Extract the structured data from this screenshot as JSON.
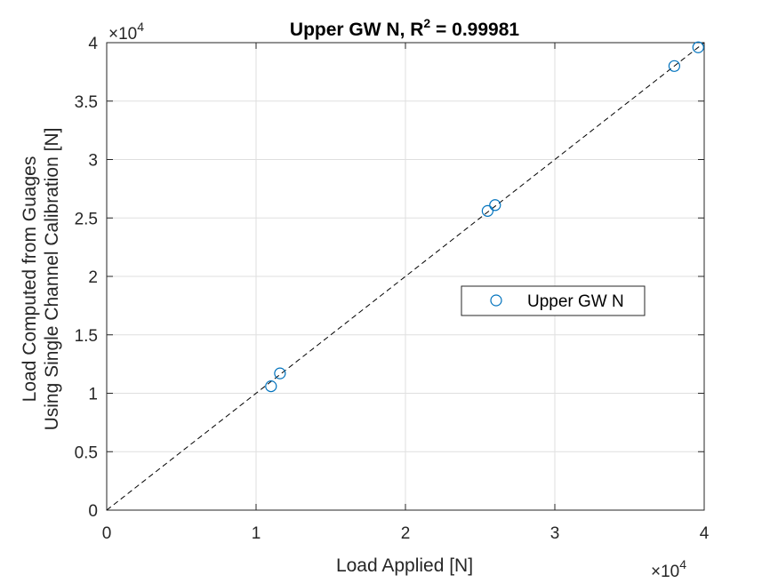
{
  "chart_data": {
    "type": "scatter",
    "title": "Upper GW N, R",
    "title_sup": "2",
    "title_value": " = 0.99981",
    "xlabel": "Load Applied [N]",
    "ylabel_line1": "Load Computed from Guages",
    "ylabel_line2": "Using Single Channel Calibration [N]",
    "x_exponent_prefix": "×10",
    "x_exponent_power": "4",
    "y_exponent_prefix": "×10",
    "y_exponent_power": "4",
    "xlim": [
      0,
      40000
    ],
    "ylim": [
      0,
      40000
    ],
    "x_scale": 10000,
    "y_scale": 10000,
    "xticks": [
      0,
      1,
      2,
      3,
      4
    ],
    "yticks": [
      0,
      0.5,
      1,
      1.5,
      2,
      2.5,
      3,
      3.5,
      4
    ],
    "xtick_labels": [
      "0",
      "1",
      "2",
      "3",
      "4"
    ],
    "ytick_labels": [
      "0",
      "0.5",
      "1",
      "1.5",
      "2",
      "2.5",
      "3",
      "3.5",
      "4"
    ],
    "grid": true,
    "legend": {
      "position": "center-right",
      "entries": [
        "Upper GW N"
      ]
    },
    "series": [
      {
        "name": "Upper GW N",
        "marker": "circle",
        "color": "#0072BD",
        "points": [
          {
            "x": 11000,
            "y": 10600
          },
          {
            "x": 11600,
            "y": 11700
          },
          {
            "x": 25500,
            "y": 25600
          },
          {
            "x": 26000,
            "y": 26100
          },
          {
            "x": 38000,
            "y": 38000
          },
          {
            "x": 39600,
            "y": 39600
          }
        ]
      }
    ],
    "reference_line": {
      "style": "dashed",
      "color": "#000000",
      "from": [
        0,
        0
      ],
      "to": [
        40000,
        40000
      ]
    }
  }
}
